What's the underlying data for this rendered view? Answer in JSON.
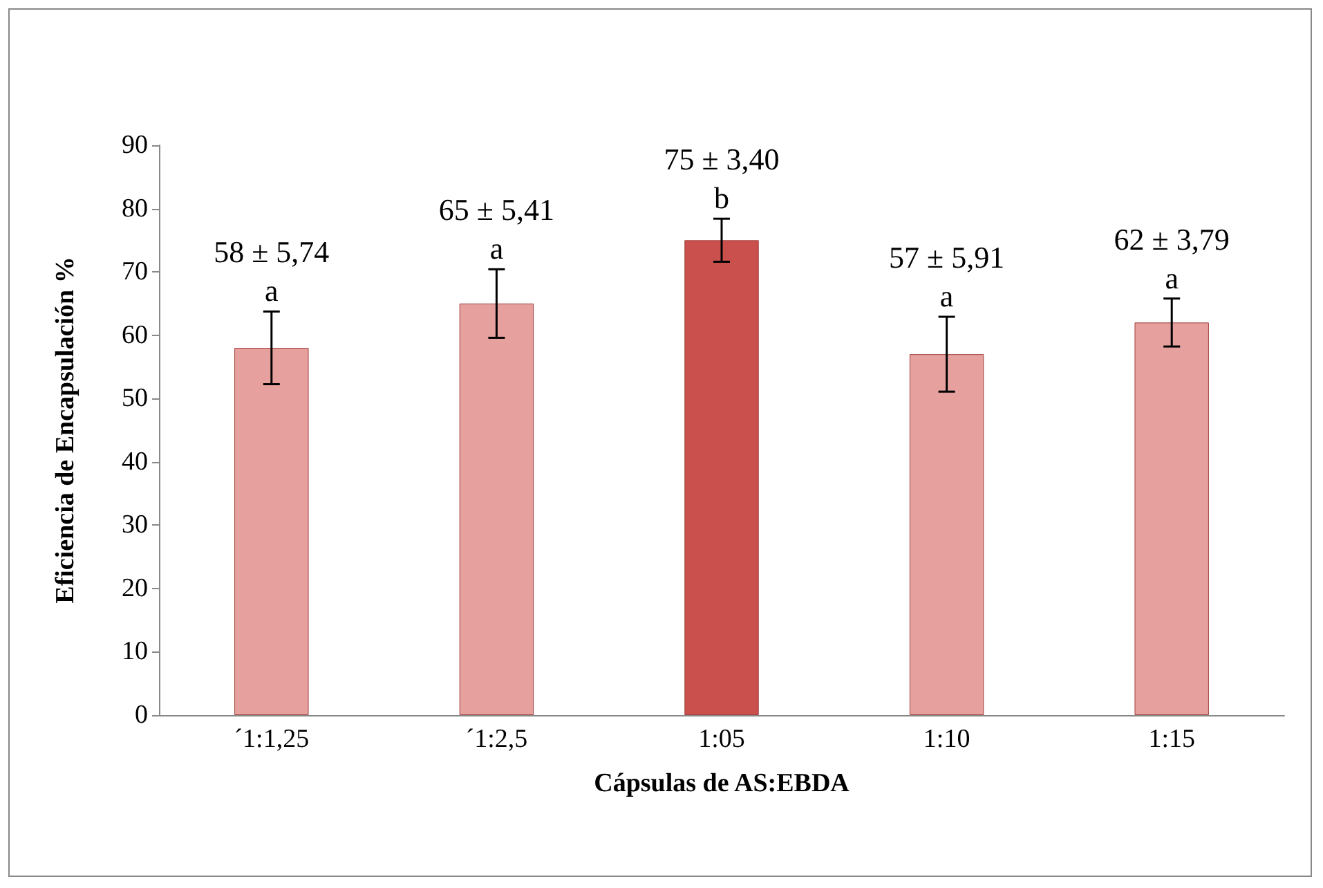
{
  "chart_data": {
    "type": "bar",
    "xlabel": "Cápsulas de AS:EBDA",
    "ylabel": "Eficiencia de Encapsulación %",
    "categories": [
      "´1:1,25",
      "´1:2,5",
      "1:05",
      "1:10",
      "1:15"
    ],
    "values": [
      58,
      65,
      75,
      57,
      62
    ],
    "colors": [
      "#e6a09e",
      "#e6a09e",
      "#c9504d",
      "#e6a09e",
      "#e6a09e"
    ],
    "errors": [
      5.74,
      5.41,
      3.4,
      5.91,
      3.79
    ],
    "value_labels": [
      "58 ± 5,74",
      "65 ± 5,41",
      "75 ± 3,40",
      "57 ± 5,91",
      "62 ± 3,79"
    ],
    "annotations": [
      {
        "text": "a",
        "x": "´1:1,25",
        "y": 58
      },
      {
        "text": "a",
        "x": "´1:2,5",
        "y": 65
      },
      {
        "text": "b",
        "x": "1:05",
        "y": 75
      },
      {
        "text": "a",
        "x": "1:10",
        "y": 57
      },
      {
        "text": "a",
        "x": "1:15",
        "y": 62
      }
    ],
    "ylim": [
      0,
      90
    ],
    "yticks": [
      0,
      10,
      20,
      30,
      40,
      50,
      60,
      70,
      80,
      90
    ],
    "grid": false
  }
}
